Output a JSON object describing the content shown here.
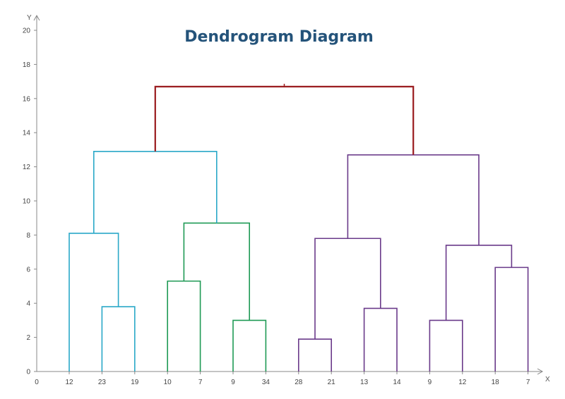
{
  "chart_data": {
    "type": "dendrogram",
    "title": "Dendrogram Diagram",
    "xlabel": "X",
    "ylabel": "Y",
    "x_origin_label": "0",
    "ylim": [
      0,
      20
    ],
    "y_ticks": [
      "0",
      "2",
      "4",
      "6",
      "8",
      "10",
      "12",
      "14",
      "16",
      "18",
      "20"
    ],
    "leaves": [
      "12",
      "23",
      "19",
      "10",
      "7",
      "9",
      "34",
      "28",
      "21",
      "13",
      "14",
      "9",
      "12",
      "18",
      "7"
    ],
    "colors": {
      "root": "#9a1b1e",
      "left_cluster_a": "#2aa8c8",
      "left_cluster_b": "#1f9a55",
      "right_cluster": "#6a3a8a"
    },
    "merges": [
      {
        "id": "c1",
        "left": 1,
        "right": 2,
        "height": 3.8,
        "color": "left_cluster_a"
      },
      {
        "id": "c2",
        "left": 0,
        "right": "c1",
        "height": 8.1,
        "color": "left_cluster_a"
      },
      {
        "id": "c3",
        "left": 3,
        "right": 4,
        "height": 5.3,
        "color": "left_cluster_b"
      },
      {
        "id": "c4",
        "left": 5,
        "right": 6,
        "height": 3.0,
        "color": "left_cluster_b"
      },
      {
        "id": "c5",
        "left": "c3",
        "right": "c4",
        "height": 8.7,
        "color": "left_cluster_b"
      },
      {
        "id": "c6",
        "left": "c2",
        "right": "c5",
        "height": 12.9,
        "color": "left_cluster_a"
      },
      {
        "id": "c7",
        "left": 7,
        "right": 8,
        "height": 1.9,
        "color": "right_cluster"
      },
      {
        "id": "c8",
        "left": 9,
        "right": 10,
        "height": 3.7,
        "color": "right_cluster"
      },
      {
        "id": "c9",
        "left": "c7",
        "right": "c8",
        "height": 7.8,
        "color": "right_cluster"
      },
      {
        "id": "c10",
        "left": 11,
        "right": 12,
        "height": 3.0,
        "color": "right_cluster"
      },
      {
        "id": "c11",
        "left": 13,
        "right": 14,
        "height": 6.1,
        "color": "right_cluster"
      },
      {
        "id": "c12",
        "left": "c10",
        "right": "c11",
        "height": 7.4,
        "color": "right_cluster"
      },
      {
        "id": "c13",
        "left": "c9",
        "right": "c12",
        "height": 12.7,
        "color": "right_cluster"
      },
      {
        "id": "c14",
        "left": "c6",
        "right": "c13",
        "height": 16.7,
        "color": "root"
      }
    ]
  }
}
